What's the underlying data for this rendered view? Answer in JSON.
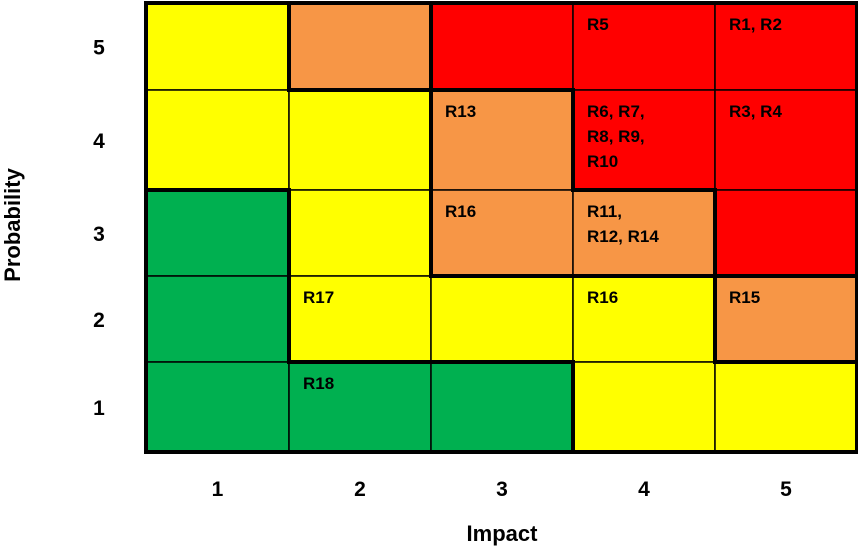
{
  "chart_data": {
    "type": "heatmap",
    "title": "",
    "xlabel": "Impact",
    "ylabel": "Probability",
    "x_ticks": [
      "1",
      "2",
      "3",
      "4",
      "5"
    ],
    "y_ticks": [
      "5",
      "4",
      "3",
      "2",
      "1"
    ],
    "colors": {
      "green": "#00b050",
      "yellow": "#ffff00",
      "orange": "#f79646",
      "red": "#ff0000"
    },
    "rows": [
      {
        "probability": "5",
        "cells": [
          {
            "impact": "1",
            "color": "yellow",
            "lines": []
          },
          {
            "impact": "2",
            "color": "orange",
            "lines": []
          },
          {
            "impact": "3",
            "color": "red",
            "lines": []
          },
          {
            "impact": "4",
            "color": "red",
            "lines": [
              "R5"
            ]
          },
          {
            "impact": "5",
            "color": "red",
            "lines": [
              "R1, R2"
            ]
          }
        ]
      },
      {
        "probability": "4",
        "cells": [
          {
            "impact": "1",
            "color": "yellow",
            "lines": []
          },
          {
            "impact": "2",
            "color": "yellow",
            "lines": []
          },
          {
            "impact": "3",
            "color": "orange",
            "lines": [
              "R13"
            ]
          },
          {
            "impact": "4",
            "color": "red",
            "lines": [
              "R6, R7,",
              "R8, R9,",
              "R10"
            ]
          },
          {
            "impact": "5",
            "color": "red",
            "lines": [
              "R3, R4"
            ]
          }
        ]
      },
      {
        "probability": "3",
        "cells": [
          {
            "impact": "1",
            "color": "green",
            "lines": []
          },
          {
            "impact": "2",
            "color": "yellow",
            "lines": []
          },
          {
            "impact": "3",
            "color": "orange",
            "lines": [
              "R16"
            ]
          },
          {
            "impact": "4",
            "color": "orange",
            "lines": [
              "R11,",
              "R12, R14"
            ]
          },
          {
            "impact": "5",
            "color": "red",
            "lines": []
          }
        ]
      },
      {
        "probability": "2",
        "cells": [
          {
            "impact": "1",
            "color": "green",
            "lines": []
          },
          {
            "impact": "2",
            "color": "yellow",
            "lines": [
              "R17"
            ]
          },
          {
            "impact": "3",
            "color": "yellow",
            "lines": []
          },
          {
            "impact": "4",
            "color": "yellow",
            "lines": [
              "R16"
            ]
          },
          {
            "impact": "5",
            "color": "orange",
            "lines": [
              "R15"
            ]
          }
        ]
      },
      {
        "probability": "1",
        "cells": [
          {
            "impact": "1",
            "color": "green",
            "lines": []
          },
          {
            "impact": "2",
            "color": "green",
            "lines": [
              "R18"
            ]
          },
          {
            "impact": "3",
            "color": "green",
            "lines": []
          },
          {
            "impact": "4",
            "color": "yellow",
            "lines": []
          },
          {
            "impact": "5",
            "color": "yellow",
            "lines": []
          }
        ]
      }
    ]
  }
}
